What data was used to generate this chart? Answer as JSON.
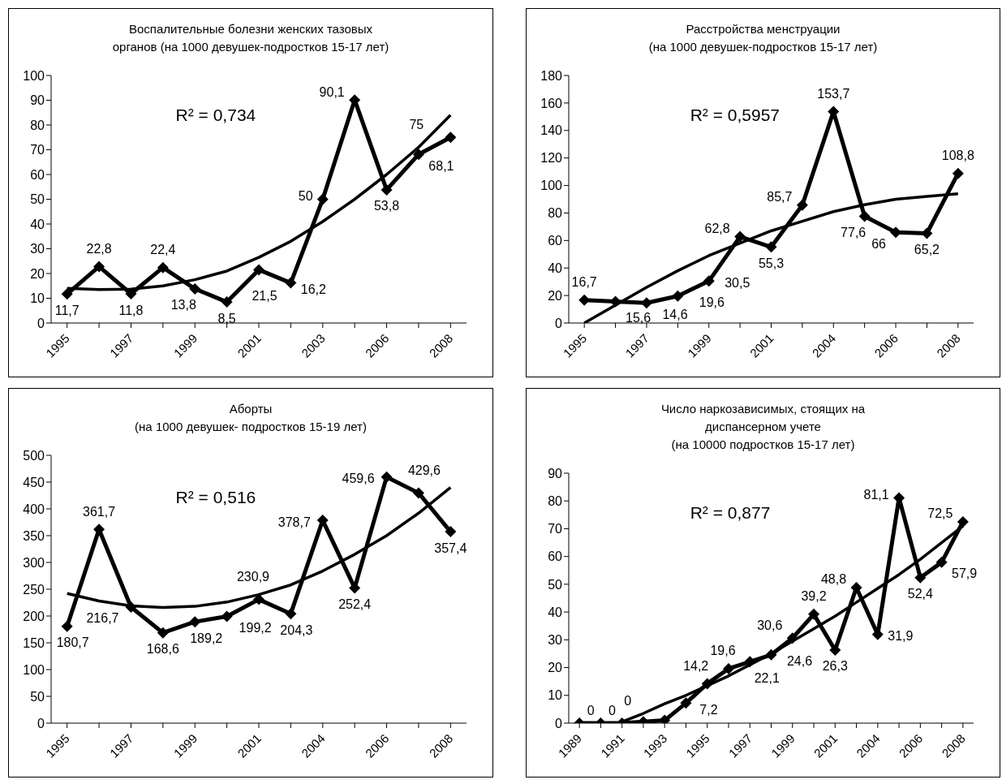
{
  "chart_data": [
    {
      "type": "line",
      "title": "Воспалительные болезни женских тазовых\nорганов (на 1000 девушек-подростков 15-17 лет)",
      "categories": [
        "1995",
        null,
        "1997",
        null,
        "1999",
        null,
        "2001",
        null,
        "2003",
        null,
        "2006",
        null,
        "2008"
      ],
      "ylim": [
        0,
        100
      ],
      "yticks": [
        0,
        10,
        20,
        30,
        40,
        50,
        60,
        70,
        80,
        90,
        100
      ],
      "marker": "diamond",
      "annotations": [
        "R² = 0,734"
      ],
      "series": [
        {
          "color": "#000000",
          "values": [
            11.7,
            22.8,
            11.8,
            22.4,
            13.8,
            8.5,
            21.5,
            16.2,
            50,
            90.1,
            53.8,
            68.1,
            75
          ],
          "value_labels": [
            "11,7",
            "22,8",
            "11,8",
            "22,4",
            "13,8",
            "8,5",
            "21,5",
            "16,2",
            "50",
            "90,1",
            "53,8",
            "68,1",
            "75"
          ]
        },
        {
          "type": "line",
          "marker": "none",
          "color": "#000000",
          "values": [
            14,
            13.5,
            13.7,
            15,
            17.5,
            21,
            26.5,
            33,
            41,
            50,
            60,
            71,
            84
          ]
        }
      ]
    },
    {
      "type": "line",
      "title": "Расстройства менструации\n(на 1000 девушек-подростков 15-17 лет)",
      "categories": [
        "1995",
        null,
        "1997",
        null,
        "1999",
        null,
        "2001",
        null,
        "2004",
        null,
        "2006",
        null,
        "2008"
      ],
      "ylim": [
        0,
        180
      ],
      "yticks": [
        0,
        20,
        40,
        60,
        80,
        100,
        120,
        140,
        160,
        180
      ],
      "marker": "diamond",
      "annotations": [
        "R² = 0,5957"
      ],
      "series": [
        {
          "color": "#000000",
          "values": [
            16.7,
            15.6,
            14.6,
            19.6,
            30.5,
            62.8,
            55.3,
            85.7,
            153.7,
            77.6,
            66,
            65.2,
            108.8
          ],
          "value_labels": [
            "16,7",
            "15,6",
            "14,6",
            "19,6",
            "30,5",
            "62,8",
            "55,3",
            "85,7",
            "153,7",
            "77,6",
            "66",
            "65,2",
            "108,8"
          ]
        },
        {
          "type": "line",
          "marker": "none",
          "color": "#000000",
          "values": [
            0,
            13,
            26,
            38,
            49,
            58,
            67,
            74,
            81,
            86,
            90,
            92,
            94
          ]
        }
      ]
    },
    {
      "type": "line",
      "title": "Аборты\n(на 1000 девушек- подростков 15-19 лет)",
      "categories": [
        "1995",
        null,
        "1997",
        null,
        "1999",
        null,
        "2001",
        null,
        "2004",
        null,
        "2006",
        null,
        "2008"
      ],
      "ylim": [
        0,
        500
      ],
      "yticks": [
        0,
        50,
        100,
        150,
        200,
        250,
        300,
        350,
        400,
        450,
        500
      ],
      "marker": "diamond",
      "annotations": [
        "R² = 0,516"
      ],
      "series": [
        {
          "color": "#000000",
          "values": [
            180.7,
            361.7,
            216.7,
            168.6,
            189.2,
            199.2,
            230.9,
            204.3,
            378.7,
            252.4,
            459.6,
            429.6,
            357.4
          ],
          "value_labels": [
            "180,7",
            "361,7",
            "216,7",
            "168,6",
            "189,2",
            "199,2",
            "230,9",
            "204,3",
            "378,7",
            "252,4",
            "459,6",
            "429,6",
            "357,4"
          ]
        },
        {
          "type": "line",
          "marker": "none",
          "color": "#000000",
          "values": [
            242,
            228,
            219,
            216,
            218,
            226,
            240,
            258,
            284,
            315,
            350,
            392,
            440
          ]
        }
      ]
    },
    {
      "type": "line",
      "title": "Число наркозависимых, стоящих на\nдиспансерном учете\n(на 10000 подростков 15-17 лет)",
      "categories": [
        "1989",
        null,
        "1991",
        null,
        "1993",
        null,
        "1995",
        null,
        "1997",
        null,
        "1999",
        null,
        "2001",
        null,
        "2004",
        null,
        "2006",
        null,
        "2008"
      ],
      "ylim": [
        0,
        90
      ],
      "yticks": [
        0,
        10,
        20,
        30,
        40,
        50,
        60,
        70,
        80,
        90
      ],
      "marker": "diamond",
      "annotations": [
        "R² = 0,877"
      ],
      "series": [
        {
          "color": "#000000",
          "values": [
            0,
            0,
            0,
            0.5,
            1,
            7.2,
            14.2,
            19.6,
            22.1,
            24.6,
            30.6,
            39.2,
            26.3,
            48.8,
            31.9,
            81.1,
            52.4,
            57.9,
            72.5
          ],
          "value_labels": [
            "0",
            "0",
            "0",
            null,
            null,
            "7,2",
            "14,2",
            "19,6",
            "22,1",
            "24,6",
            "30,6",
            "39,2",
            "26,3",
            "48,8",
            "31,9",
            "81,1",
            "52,4",
            "57,9",
            "72,5"
          ]
        },
        {
          "type": "line",
          "marker": "none",
          "color": "#000000",
          "values": [
            null,
            null,
            0.5,
            3.5,
            7,
            10,
            13.5,
            17,
            21,
            25,
            29.5,
            34,
            38.5,
            43.5,
            48.5,
            53.5,
            59,
            65,
            71
          ]
        }
      ]
    }
  ]
}
